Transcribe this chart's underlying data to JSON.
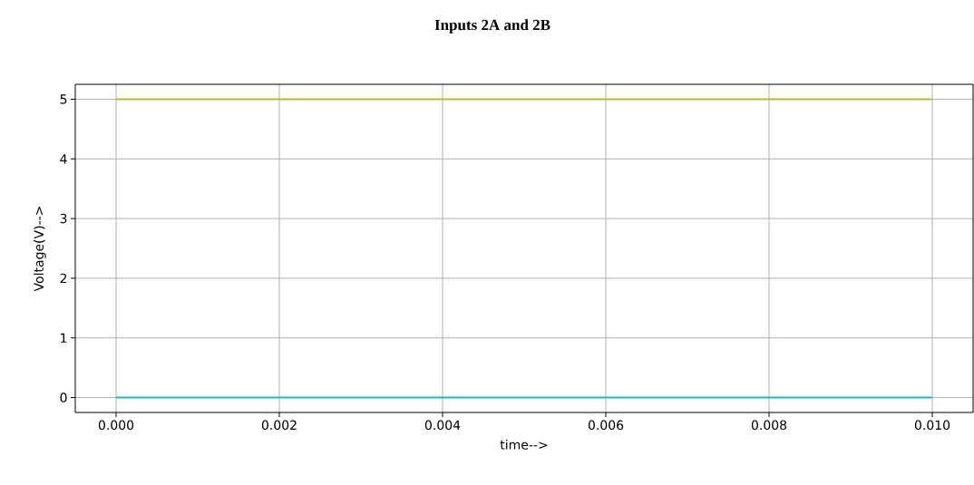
{
  "chart_data": {
    "type": "line",
    "title": "Inputs 2A and 2B",
    "xlabel": "time-->",
    "ylabel": "Voltage(V)-->",
    "x": [
      0,
      0.01
    ],
    "series": [
      {
        "color": "#bcbd22",
        "values": [
          5,
          5
        ]
      },
      {
        "color": "#17becf",
        "values": [
          0,
          0
        ]
      }
    ],
    "xlim": [
      -0.0005,
      0.0105
    ],
    "ylim": [
      -0.25,
      5.25
    ],
    "xticks": [
      {
        "value": 0,
        "label": "0.000"
      },
      {
        "value": 0.002,
        "label": "0.002"
      },
      {
        "value": 0.004,
        "label": "0.004"
      },
      {
        "value": 0.006,
        "label": "0.006"
      },
      {
        "value": 0.008,
        "label": "0.008"
      },
      {
        "value": 0.01,
        "label": "0.010"
      }
    ],
    "yticks": [
      0,
      1,
      2,
      3,
      4,
      5
    ],
    "grid": true,
    "marker": "none",
    "line_style": "solid"
  }
}
